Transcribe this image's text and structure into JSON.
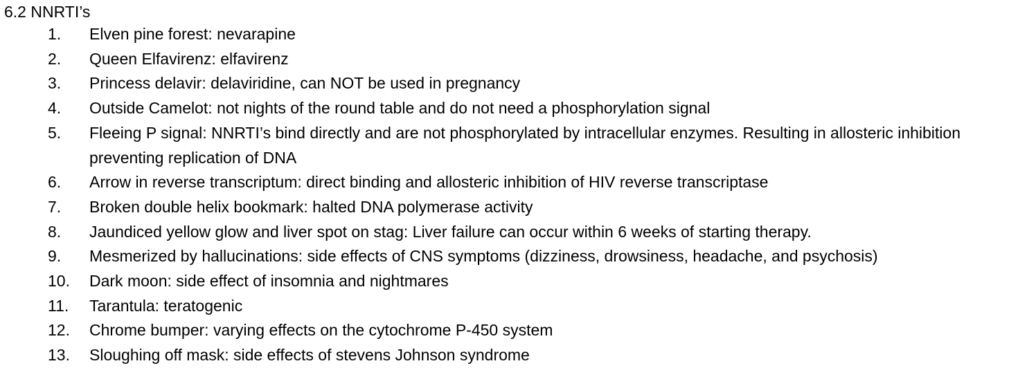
{
  "heading": "6.2 NNRTI’s",
  "items": [
    {
      "number": "1.",
      "text": "Elven pine forest: nevarapine"
    },
    {
      "number": "2.",
      "text": "Queen Elfavirenz: elfavirenz"
    },
    {
      "number": "3.",
      "text": "Princess delavir: delaviridine, can NOT be used in pregnancy"
    },
    {
      "number": "4.",
      "text": "Outside Camelot: not nights of the round table and do not need a phosphorylation signal"
    },
    {
      "number": "5.",
      "text": "Fleeing P signal: NNRTI’s bind directly and are not phosphorylated by intracellular enzymes. Resulting in allosteric inhibition preventing replication of DNA"
    },
    {
      "number": "6.",
      "text": "Arrow in reverse transcriptum: direct binding and allosteric inhibition of HIV reverse transcriptase"
    },
    {
      "number": "7.",
      "text": "Broken double helix bookmark: halted DNA polymerase activity"
    },
    {
      "number": "8.",
      "text": "Jaundiced yellow glow and liver spot on stag: Liver failure can occur within 6 weeks of starting therapy."
    },
    {
      "number": "9.",
      "text": "Mesmerized by hallucinations: side effects of CNS symptoms (dizziness, drowsiness, headache, and psychosis)"
    },
    {
      "number": "10.",
      "text": "Dark moon: side effect of insomnia and nightmares"
    },
    {
      "number": "11.",
      "text": "Tarantula: teratogenic"
    },
    {
      "number": "12.",
      "text": "Chrome bumper: varying effects on the cytochrome P-450 system"
    },
    {
      "number": "13.",
      "text": "Sloughing off mask: side effects of stevens Johnson syndrome"
    }
  ]
}
